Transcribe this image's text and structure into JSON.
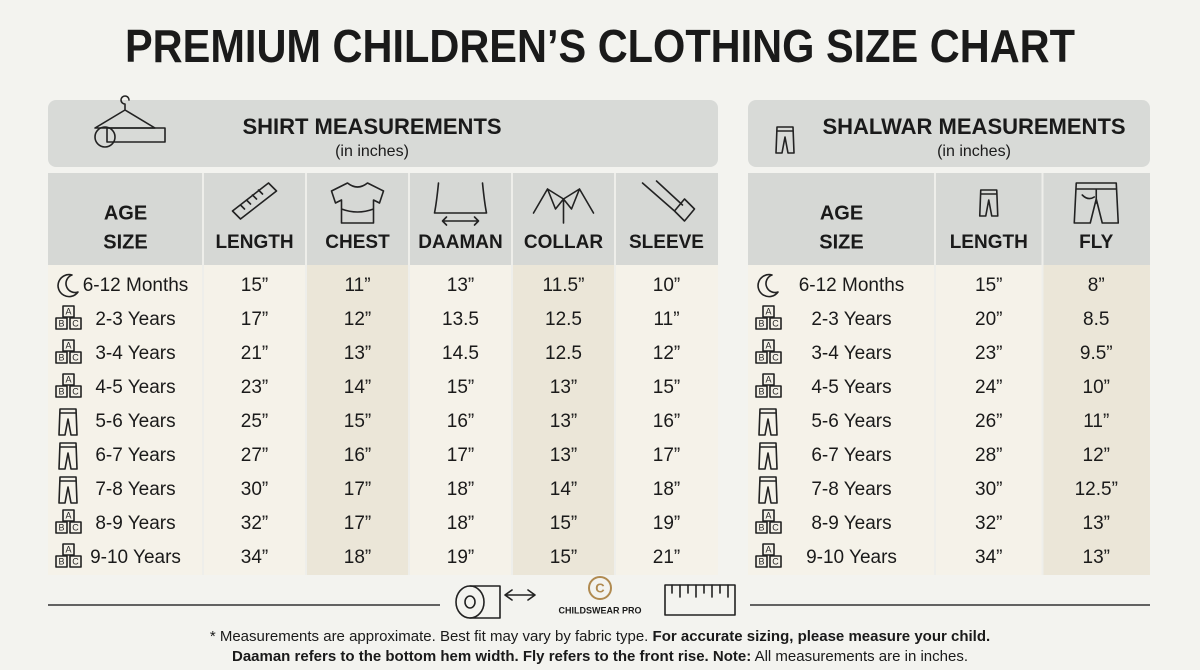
{
  "title": "PREMIUM CHILDREN’S CLOTHING SIZE CHART",
  "shirt": {
    "heading": "SHIRT MEASUREMENTS",
    "unit": "(in inches)",
    "age_header": [
      "AGE",
      "SIZE"
    ],
    "columns": [
      "LENGTH",
      "CHEST",
      "DAAMAN",
      "COLLAR",
      "SLEEVE"
    ],
    "rows": [
      [
        "6-12 Months",
        "15”",
        "11”",
        "13”",
        "11.5”",
        "10”"
      ],
      [
        "2-3 Years",
        "17”",
        "12”",
        "13.5",
        "12.5",
        "11”"
      ],
      [
        "3-4 Years",
        "21”",
        "13”",
        "14.5",
        "12.5",
        "12”"
      ],
      [
        "4-5 Years",
        "23”",
        "14”",
        "15”",
        "13”",
        "15”"
      ],
      [
        "5-6 Years",
        "25”",
        "15”",
        "16”",
        "13”",
        "16”"
      ],
      [
        "6-7 Years",
        "27”",
        "16”",
        "17”",
        "13”",
        "17”"
      ],
      [
        "7-8 Years",
        "30”",
        "17”",
        "18”",
        "14”",
        "18”"
      ],
      [
        "8-9 Years",
        "32”",
        "17”",
        "18”",
        "15”",
        "19”"
      ],
      [
        "9-10 Years",
        "34”",
        "18”",
        "19”",
        "15”",
        "21”"
      ]
    ]
  },
  "shalwar": {
    "heading": "SHALWAR MEASUREMENTS",
    "unit": "(in inches)",
    "age_header": [
      "AGE",
      "SIZE"
    ],
    "columns": [
      "LENGTH",
      "FLY"
    ],
    "rows": [
      [
        "6-12 Months",
        "15”",
        "8”"
      ],
      [
        "2-3 Years",
        "20”",
        "8.5"
      ],
      [
        "3-4 Years",
        "23”",
        "9.5”"
      ],
      [
        "4-5 Years",
        "24”",
        "10”"
      ],
      [
        "5-6 Years",
        "26”",
        "11”"
      ],
      [
        "6-7 Years",
        "28”",
        "12”"
      ],
      [
        "7-8 Years",
        "30”",
        "12.5”"
      ],
      [
        "8-9 Years",
        "32”",
        "13”"
      ],
      [
        "9-10 Years",
        "34”",
        "13”"
      ]
    ]
  },
  "block_letters": [
    "A",
    "B",
    "C"
  ],
  "logo": "CHILDSWEAR PRO",
  "footer": [
    [
      {
        "text": "* Measurements are approximate. Best fit may vary by fabric type. ",
        "bold": false
      },
      {
        "text": "For accurate sizing, please measure your child.",
        "bold": true
      }
    ],
    [
      {
        "text": "Daaman refers to the bottom hem width. Fly refers to the front rise. Note:",
        "bold": true
      },
      {
        "text": " All measurements are in inches.",
        "bold": false
      }
    ]
  ]
}
